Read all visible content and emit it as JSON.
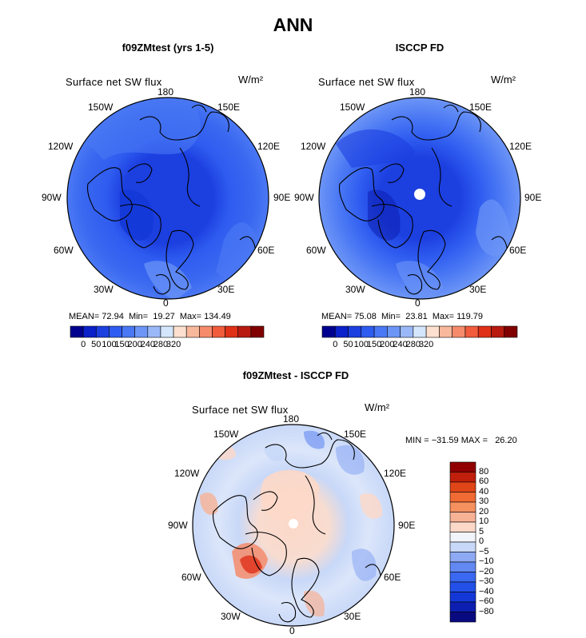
{
  "title": "ANN",
  "colors": {
    "abs_scale": [
      "#00008f",
      "#0a20c8",
      "#1c3fe0",
      "#2f5cf0",
      "#4a78f4",
      "#6c95f6",
      "#9ab8f8",
      "#d4e6fb",
      "#fde0cf",
      "#f8b89c",
      "#f58b6b",
      "#f05c3c",
      "#e03018",
      "#b81a10",
      "#800000"
    ],
    "diff_scale": [
      "#0a0a80",
      "#0d1fb0",
      "#1438d8",
      "#2250e8",
      "#3a68f0",
      "#6288f2",
      "#8eaaf4",
      "#c8d8f8",
      "#f2f4fb",
      "#fcd8c8",
      "#f7b195",
      "#f5905f",
      "#f06a34",
      "#e04518",
      "#c01f0c",
      "#900000"
    ]
  },
  "panels": [
    {
      "title": "f09ZMtest (yrs 1-5)",
      "variable": "Surface net SW flux",
      "units": "W/m²",
      "lon_labels": [
        "180",
        "150E",
        "120E",
        "90E",
        "60E",
        "30E",
        "0",
        "30W",
        "60W",
        "90W",
        "120W",
        "150W"
      ],
      "stats": {
        "mean_label": "MEAN=",
        "mean": "72.94",
        "min_label": "Min=",
        "min": "19.27",
        "max_label": "Max=",
        "max": "134.49"
      },
      "colorbar_labels": [
        "0",
        "50",
        "100",
        "150",
        "200",
        "240",
        "280",
        "320"
      ]
    },
    {
      "title": "ISCCP FD",
      "variable": "Surface net SW flux",
      "units": "W/m²",
      "lon_labels": [
        "180",
        "150E",
        "120E",
        "90E",
        "60E",
        "30E",
        "0",
        "30W",
        "60W",
        "90W",
        "120W",
        "150W"
      ],
      "stats": {
        "mean_label": "MEAN=",
        "mean": "75.08",
        "min_label": "Min=",
        "min": "23.81",
        "max_label": "Max=",
        "max": "119.79"
      },
      "colorbar_labels": [
        "0",
        "50",
        "100",
        "150",
        "200",
        "240",
        "280",
        "320"
      ]
    },
    {
      "title": "f09ZMtest - ISCCP FD",
      "variable": "Surface net SW flux",
      "units": "W/m²",
      "lon_labels": [
        "180",
        "150E",
        "120E",
        "90E",
        "60E",
        "30E",
        "0",
        "30W",
        "60W",
        "90W",
        "120W",
        "150W"
      ],
      "stats_text": "MIN = −31.59 MAX =   26.20",
      "colorbar_labels": [
        "80",
        "60",
        "40",
        "30",
        "20",
        "10",
        "5",
        "0",
        "−5",
        "−10",
        "−20",
        "−30",
        "−40",
        "−60",
        "−80"
      ]
    }
  ]
}
